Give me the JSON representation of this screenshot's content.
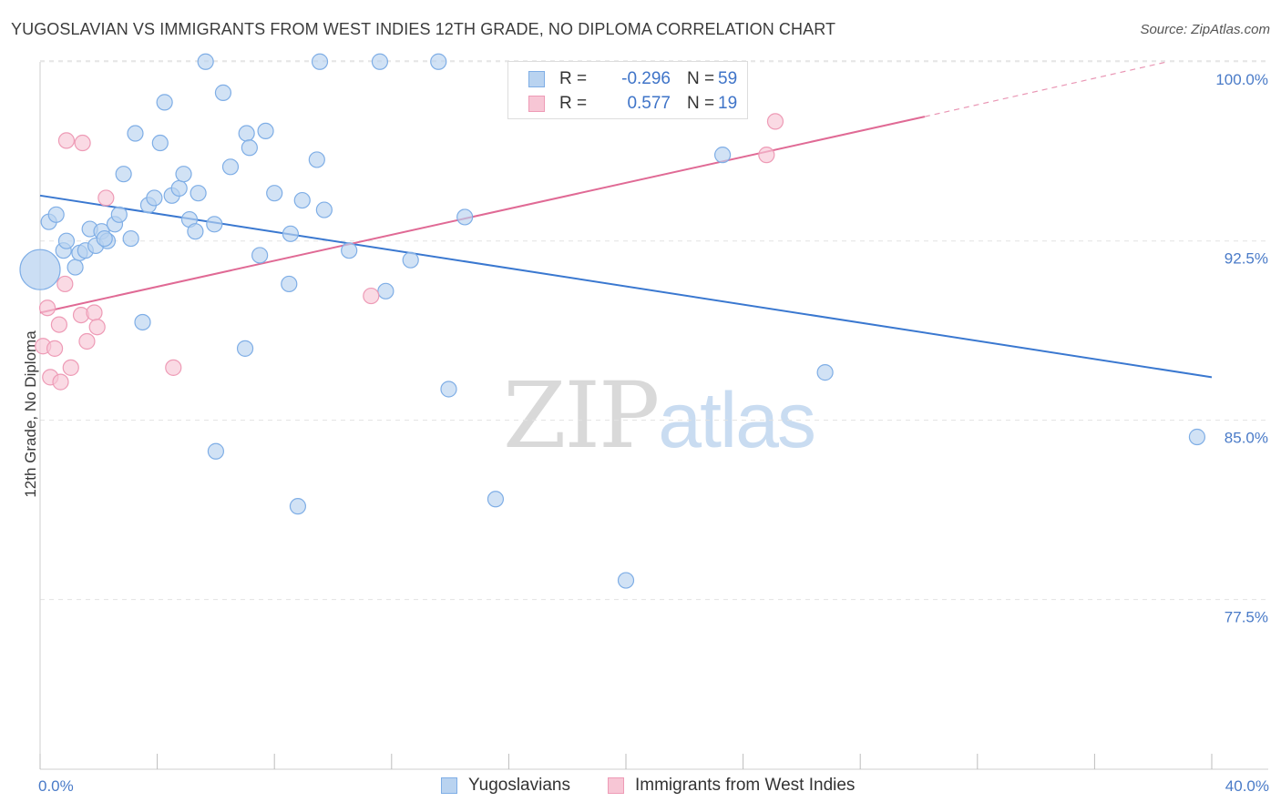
{
  "header": {
    "title": "YUGOSLAVIAN VS IMMIGRANTS FROM WEST INDIES 12TH GRADE, NO DIPLOMA CORRELATION CHART",
    "source": "Source: ZipAtlas.com"
  },
  "watermark": {
    "zip": "ZIP",
    "atlas": "atlas"
  },
  "legend": {
    "rows": [
      {
        "r_label": "R =",
        "r_value": "-0.296",
        "n_label": "N =",
        "n_value": "59"
      },
      {
        "r_label": "R =",
        "r_value": "0.577",
        "n_label": "N =",
        "n_value": "19"
      }
    ]
  },
  "bottom_legend": {
    "series1": "Yugoslavians",
    "series2": "Immigrants from West Indies"
  },
  "colors": {
    "blue_fill": "#b9d3f0",
    "blue_stroke": "#7faee6",
    "blue_line": "#3a78d0",
    "pink_fill": "#f7c6d5",
    "pink_stroke": "#ee9bb6",
    "pink_line": "#e06a95",
    "tick_label": "#4a7bc8",
    "grid": "#e3e3e3"
  },
  "chart_data": {
    "type": "scatter",
    "title": "YUGOSLAVIAN VS IMMIGRANTS FROM WEST INDIES 12TH GRADE, NO DIPLOMA CORRELATION CHART",
    "xlabel": "",
    "ylabel": "12th Grade, No Diploma",
    "xlim": [
      0,
      40
    ],
    "ylim": [
      70.4,
      100.6
    ],
    "x_tick_labels": [
      "0.0%",
      "40.0%"
    ],
    "x_minor_ticks": [
      0,
      4,
      8,
      12,
      16,
      20,
      24,
      28,
      32,
      36,
      40
    ],
    "y_ticks": [
      77.5,
      85.0,
      92.5,
      100.0
    ],
    "y_tick_labels": [
      "77.5%",
      "85.0%",
      "92.5%",
      "100.0%"
    ],
    "grid": true,
    "legend_position": "top-center",
    "series": [
      {
        "name": "Yugoslavians",
        "color": "#b9d3f0",
        "points": [
          {
            "x": 0.0,
            "y": 91.3,
            "big": true
          },
          {
            "x": 0.3,
            "y": 93.3
          },
          {
            "x": 0.55,
            "y": 93.6
          },
          {
            "x": 0.8,
            "y": 92.1
          },
          {
            "x": 0.9,
            "y": 92.5
          },
          {
            "x": 1.2,
            "y": 91.4
          },
          {
            "x": 1.35,
            "y": 92.0
          },
          {
            "x": 1.55,
            "y": 92.1
          },
          {
            "x": 1.7,
            "y": 93.0
          },
          {
            "x": 1.9,
            "y": 92.3
          },
          {
            "x": 2.1,
            "y": 92.9
          },
          {
            "x": 2.3,
            "y": 92.5
          },
          {
            "x": 2.55,
            "y": 93.2
          },
          {
            "x": 2.7,
            "y": 93.6
          },
          {
            "x": 3.1,
            "y": 92.6
          },
          {
            "x": 2.85,
            "y": 95.3
          },
          {
            "x": 3.25,
            "y": 97.0
          },
          {
            "x": 3.5,
            "y": 89.1
          },
          {
            "x": 3.7,
            "y": 94.0
          },
          {
            "x": 3.9,
            "y": 94.3
          },
          {
            "x": 4.1,
            "y": 96.6
          },
          {
            "x": 4.25,
            "y": 98.3
          },
          {
            "x": 4.5,
            "y": 94.4
          },
          {
            "x": 4.75,
            "y": 94.7
          },
          {
            "x": 4.9,
            "y": 95.3
          },
          {
            "x": 5.1,
            "y": 93.4
          },
          {
            "x": 5.3,
            "y": 92.9
          },
          {
            "x": 5.4,
            "y": 94.5
          },
          {
            "x": 5.65,
            "y": 100.0
          },
          {
            "x": 5.95,
            "y": 93.2
          },
          {
            "x": 6.0,
            "y": 83.7
          },
          {
            "x": 6.25,
            "y": 98.7
          },
          {
            "x": 6.5,
            "y": 95.6
          },
          {
            "x": 7.05,
            "y": 97.0
          },
          {
            "x": 7.0,
            "y": 88.0
          },
          {
            "x": 7.15,
            "y": 96.4
          },
          {
            "x": 7.5,
            "y": 91.9
          },
          {
            "x": 7.7,
            "y": 97.1
          },
          {
            "x": 8.0,
            "y": 94.5
          },
          {
            "x": 8.5,
            "y": 90.7
          },
          {
            "x": 8.55,
            "y": 92.8
          },
          {
            "x": 8.8,
            "y": 81.4
          },
          {
            "x": 8.95,
            "y": 94.2
          },
          {
            "x": 9.45,
            "y": 95.9
          },
          {
            "x": 9.55,
            "y": 100.0
          },
          {
            "x": 9.7,
            "y": 93.8
          },
          {
            "x": 10.55,
            "y": 92.1
          },
          {
            "x": 11.6,
            "y": 100.0
          },
          {
            "x": 11.8,
            "y": 90.4
          },
          {
            "x": 12.65,
            "y": 91.7
          },
          {
            "x": 13.6,
            "y": 100.0
          },
          {
            "x": 13.95,
            "y": 86.3
          },
          {
            "x": 14.5,
            "y": 93.5
          },
          {
            "x": 15.55,
            "y": 81.7
          },
          {
            "x": 20.0,
            "y": 78.3
          },
          {
            "x": 23.3,
            "y": 96.1
          },
          {
            "x": 26.8,
            "y": 87.0
          },
          {
            "x": 39.5,
            "y": 84.3
          },
          {
            "x": 2.2,
            "y": 92.6
          }
        ],
        "trend": {
          "x0": 0,
          "y0": 94.4,
          "x1": 40,
          "y1": 86.8
        }
      },
      {
        "name": "Immigrants from West Indies",
        "color": "#f7c6d5",
        "points": [
          {
            "x": 0.1,
            "y": 88.1
          },
          {
            "x": 0.25,
            "y": 89.7
          },
          {
            "x": 0.35,
            "y": 86.8
          },
          {
            "x": 0.5,
            "y": 88.0
          },
          {
            "x": 0.65,
            "y": 89.0
          },
          {
            "x": 0.7,
            "y": 86.6
          },
          {
            "x": 0.85,
            "y": 90.7
          },
          {
            "x": 0.9,
            "y": 96.7
          },
          {
            "x": 1.05,
            "y": 87.2
          },
          {
            "x": 1.4,
            "y": 89.4
          },
          {
            "x": 1.45,
            "y": 96.6
          },
          {
            "x": 1.6,
            "y": 88.3
          },
          {
            "x": 1.85,
            "y": 89.5
          },
          {
            "x": 1.95,
            "y": 88.9
          },
          {
            "x": 2.25,
            "y": 94.3
          },
          {
            "x": 4.55,
            "y": 87.2
          },
          {
            "x": 11.3,
            "y": 90.2
          },
          {
            "x": 24.8,
            "y": 96.1
          },
          {
            "x": 25.1,
            "y": 97.5
          }
        ],
        "trend": {
          "x0": 0,
          "y0": 89.5,
          "x1": 30.2,
          "y1": 97.7,
          "dash_x1": 38.5,
          "dash_y1": 100.0
        }
      }
    ]
  }
}
